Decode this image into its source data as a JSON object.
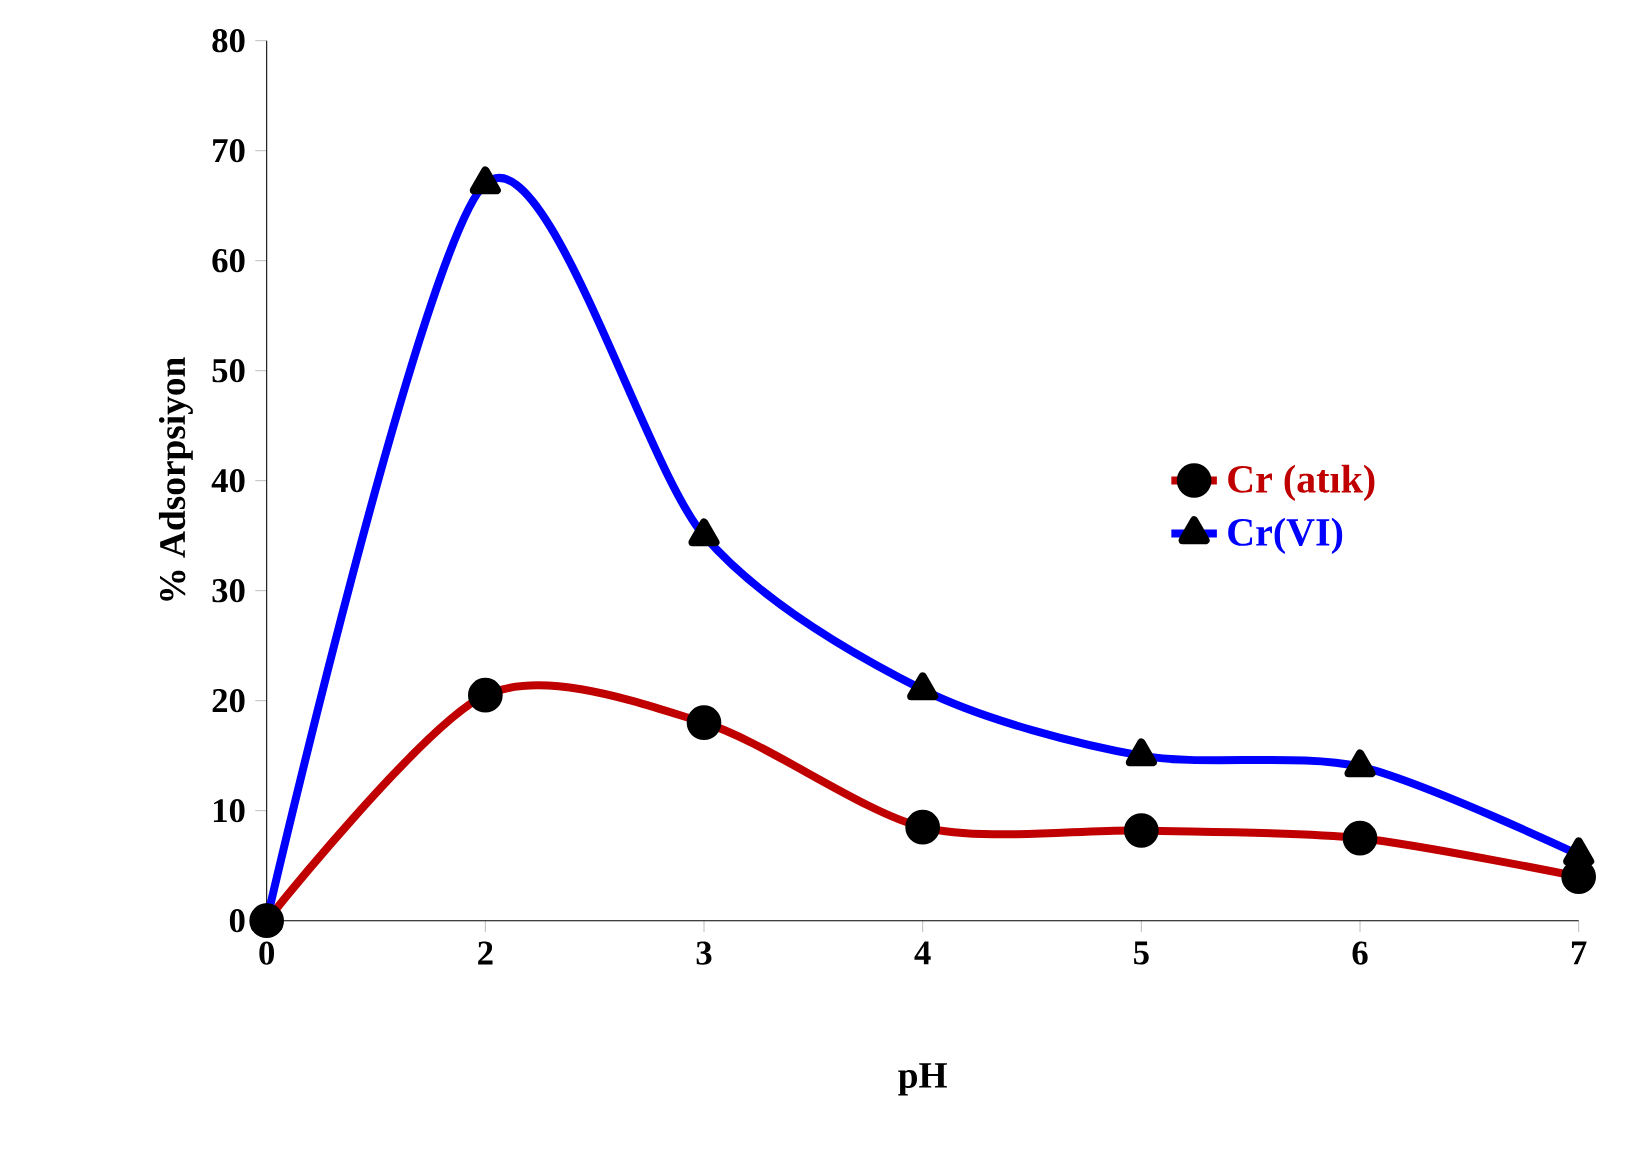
{
  "chart_data": {
    "type": "line",
    "xlabel": "pH",
    "ylabel": "% Adsorpsiyon",
    "categories": [
      "0",
      "2",
      "3",
      "4",
      "5",
      "6",
      "7"
    ],
    "series": [
      {
        "name": "Cr (atık)",
        "color": "#c00000",
        "marker": "circle",
        "values": [
          0,
          20.5,
          18,
          8.5,
          8.2,
          7.5,
          4
        ]
      },
      {
        "name": "Cr(VI)",
        "color": "#0000ff",
        "marker": "triangle",
        "values": [
          0,
          67,
          35,
          21,
          15,
          14,
          6
        ]
      }
    ],
    "ylim": [
      0,
      80
    ],
    "yticks": [
      0,
      10,
      20,
      30,
      40,
      50,
      60,
      70,
      80
    ],
    "grid": false,
    "legend": "right",
    "line_style": "solid"
  }
}
